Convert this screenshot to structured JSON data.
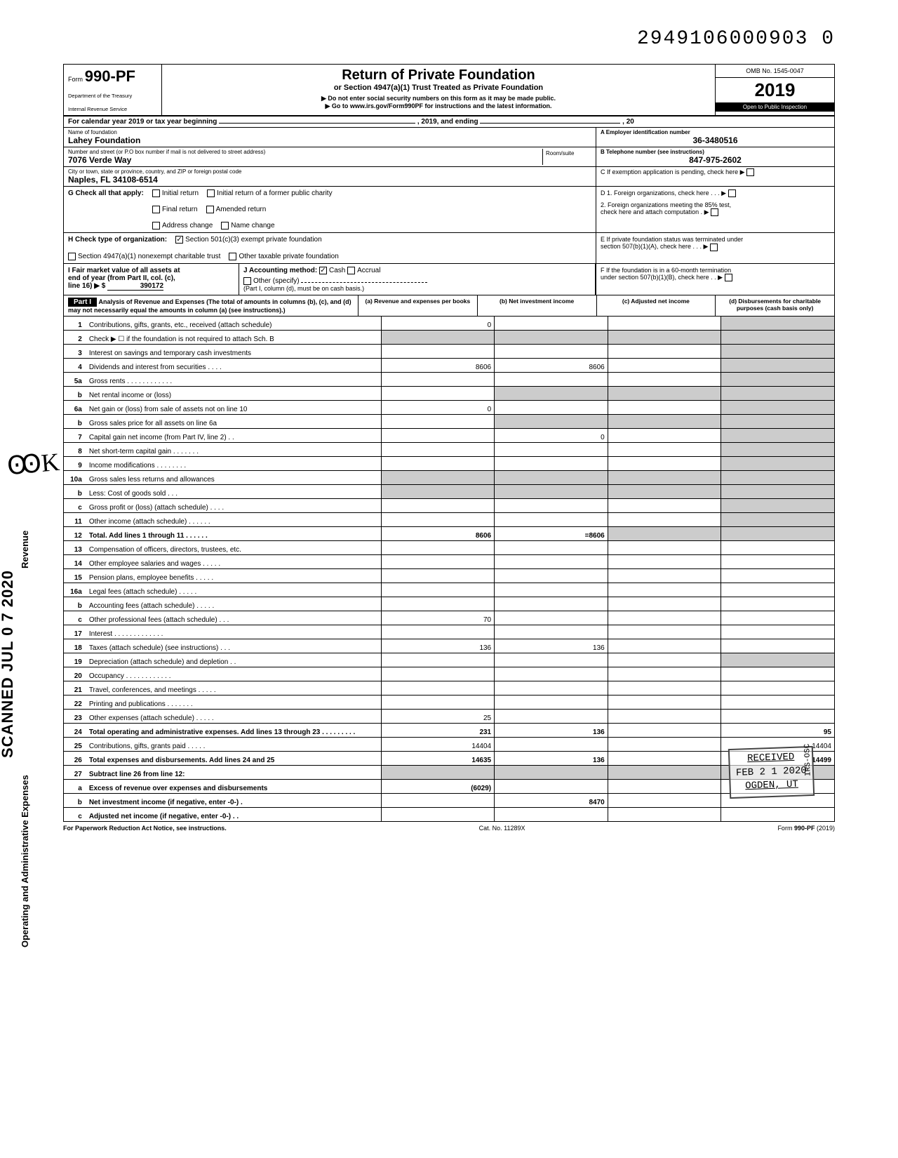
{
  "top_number": "2949106000903  0",
  "header": {
    "form_label": "Form",
    "form_code": "990-PF",
    "dept1": "Department of the Treasury",
    "dept2": "Internal Revenue Service",
    "title": "Return of Private Foundation",
    "sub1": "or Section 4947(a)(1) Trust Treated as Private Foundation",
    "sub2": "▶ Do not enter social security numbers on this form as it may be made public.",
    "sub3": "▶ Go to www.irs.gov/Form990PF for instructions and the latest information.",
    "omb": "OMB No. 1545-0047",
    "year_prefix": "20",
    "year_bold": "19",
    "inspect": "Open to Public Inspection"
  },
  "calendar_line": {
    "pre": "For calendar year 2019 or tax year beginning",
    "mid": ", 2019, and ending",
    "post": ", 20"
  },
  "entity": {
    "name_label": "Name of foundation",
    "name": "Lahey Foundation",
    "addr_label": "Number and street (or P.O  box number if mail is not delivered to street address)",
    "addr": "7076 Verde Way",
    "room_label": "Room/suite",
    "city_label": "City or town, state or province, country, and ZIP or foreign postal code",
    "city": "Naples, FL 34108-6514",
    "ein_label": "A  Employer identification number",
    "ein": "36-3480516",
    "tel_label": "B  Telephone number (see instructions)",
    "tel": "847-975-2602",
    "c_label": "C  If exemption application is pending, check here ▶"
  },
  "g_section": {
    "lead": "G  Check all that apply:",
    "opt1": "Initial return",
    "opt2": "Final return",
    "opt3": "Address change",
    "opt4": "Initial return of a former public charity",
    "opt5": "Amended return",
    "opt6": "Name change"
  },
  "d_section": {
    "d1": "D  1. Foreign organizations, check here  .   .   .  ▶",
    "d2a": "2. Foreign organizations meeting the 85% test,",
    "d2b": "check here and attach computation    .   ▶"
  },
  "h_section": {
    "lead": "H  Check type of organization:",
    "opt1": "Section 501(c)(3) exempt private foundation",
    "opt2": "Section 4947(a)(1) nonexempt charitable trust",
    "opt3": "Other taxable private foundation"
  },
  "e_section": {
    "e1": "E  If private foundation status was terminated under",
    "e2": "section 507(b)(1)(A), check here   .   .   .   ▶"
  },
  "i_section": {
    "line1": "I    Fair market value of all assets at",
    "line2": "end of year (from Part II, col. (c),",
    "line3": "line 16) ▶ $",
    "value": "390172",
    "j": "J  Accounting method:",
    "cash": "Cash",
    "accrual": "Accrual",
    "other": "Other (specify)",
    "note": "(Part I, column (d), must be on cash basis.)"
  },
  "f_section": {
    "f1": "F  If the foundation is in a 60-month termination",
    "f2": "under section 507(b)(1)(B), check here   .   .   ▶"
  },
  "part1": {
    "tab": "Part I",
    "head": "Analysis of Revenue and Expenses (The total of amounts in columns (b), (c), and (d) may not necessarily equal the amounts in column (a) (see instructions).)",
    "col_a": "(a) Revenue and expenses per books",
    "col_b": "(b) Net investment income",
    "col_c": "(c) Adjusted net income",
    "col_d": "(d) Disbursements for charitable purposes (cash basis only)"
  },
  "side": {
    "revenue": "Revenue",
    "expenses": "Operating and Administrative Expenses",
    "scanned": "SCANNED   JUL 0 7 2020"
  },
  "rows": [
    {
      "n": "1",
      "d": "Contributions, gifts, grants, etc., received (attach schedule)",
      "a": "0"
    },
    {
      "n": "2",
      "d": "Check ▶ ☐ if the foundation is not required to attach Sch. B"
    },
    {
      "n": "3",
      "d": "Interest on savings and temporary cash investments"
    },
    {
      "n": "4",
      "d": "Dividends and interest from securities   .   .   .   .",
      "a": "8606",
      "b": "8606"
    },
    {
      "n": "5a",
      "d": "Gross rents .   .   .   .   .   .   .   .   .   .   .   ."
    },
    {
      "n": "b",
      "d": "Net rental income or (loss)"
    },
    {
      "n": "6a",
      "d": "Net gain or (loss) from sale of assets not on line 10",
      "a": "0"
    },
    {
      "n": "b",
      "d": "Gross sales price for all assets on line 6a"
    },
    {
      "n": "7",
      "d": "Capital gain net income (from Part IV, line 2)   .   .",
      "b": "0"
    },
    {
      "n": "8",
      "d": "Net short-term capital gain .   .   .   .   .   .   ."
    },
    {
      "n": "9",
      "d": "Income modifications     .   .   .   .   .   .   .   ."
    },
    {
      "n": "10a",
      "d": "Gross sales less returns and allowances"
    },
    {
      "n": "b",
      "d": "Less: Cost of goods sold    .   .   ."
    },
    {
      "n": "c",
      "d": "Gross profit or (loss) (attach schedule)  .   .   .   ."
    },
    {
      "n": "11",
      "d": "Other income (attach schedule)   .   .   .   .   .   ."
    },
    {
      "n": "12",
      "d": "Total. Add lines 1 through 11   .   .   .   .   .   .",
      "a": "8606",
      "b": "=8606",
      "bold": true
    },
    {
      "n": "13",
      "d": "Compensation of officers, directors, trustees, etc."
    },
    {
      "n": "14",
      "d": "Other employee salaries and wages .   .   .   .   ."
    },
    {
      "n": "15",
      "d": "Pension plans, employee benefits    .   .   .   .   ."
    },
    {
      "n": "16a",
      "d": "Legal fees (attach schedule)    .   .   .   .   ."
    },
    {
      "n": "b",
      "d": "Accounting fees (attach schedule)   .   .   .   .   ."
    },
    {
      "n": "c",
      "d": "Other professional fees (attach schedule)  .   .   .",
      "a": "70"
    },
    {
      "n": "17",
      "d": "Interest   .   .   .   .   .   .   .   .   .   .   .   .   ."
    },
    {
      "n": "18",
      "d": "Taxes (attach schedule) (see instructions)  .   .   .",
      "a": "136",
      "b": "136"
    },
    {
      "n": "19",
      "d": "Depreciation (attach schedule) and depletion .   ."
    },
    {
      "n": "20",
      "d": "Occupancy .   .   .   .   .   .   .   .   .   .   .   ."
    },
    {
      "n": "21",
      "d": "Travel, conferences, and meetings   .   .   .   .   ."
    },
    {
      "n": "22",
      "d": "Printing and publications    .   .   .   .   .   .   ."
    },
    {
      "n": "23",
      "d": "Other expenses (attach schedule)    .   .   .   .   .",
      "a": "25"
    },
    {
      "n": "24",
      "d": "Total operating and administrative expenses. Add lines 13 through 23 .   .   .   .   .   .   .   .   .",
      "a": "231",
      "b": "136",
      "dd": "95",
      "bold": true
    },
    {
      "n": "25",
      "d": "Contributions, gifts, grants paid    .   .   .   .   .",
      "a": "14404",
      "dd": "14404"
    },
    {
      "n": "26",
      "d": "Total expenses and disbursements. Add lines 24 and 25",
      "a": "14635",
      "b": "136",
      "dd": "14499",
      "bold": true
    },
    {
      "n": "27",
      "d": "Subtract line 26 from line 12:",
      "bold": true
    },
    {
      "n": "a",
      "d": "Excess of revenue over expenses and disbursements",
      "a": "(6029)",
      "bold": true
    },
    {
      "n": "b",
      "d": "Net investment income (if negative, enter -0-)   .",
      "b": "8470",
      "bold": true
    },
    {
      "n": "c",
      "d": "Adjusted net income (if negative, enter -0-)   .   .",
      "bold": true
    }
  ],
  "stamp": {
    "l1": "RECEIVED",
    "l2": "FEB 2 1 2020",
    "l3": "OGDEN, UT",
    "side": "IRS-OSC"
  },
  "footer": {
    "left": "For Paperwork Reduction Act Notice, see instructions.",
    "mid": "Cat. No. 11289X",
    "right": "Form 990-PF (2019)"
  },
  "hand": "ꙬK"
}
